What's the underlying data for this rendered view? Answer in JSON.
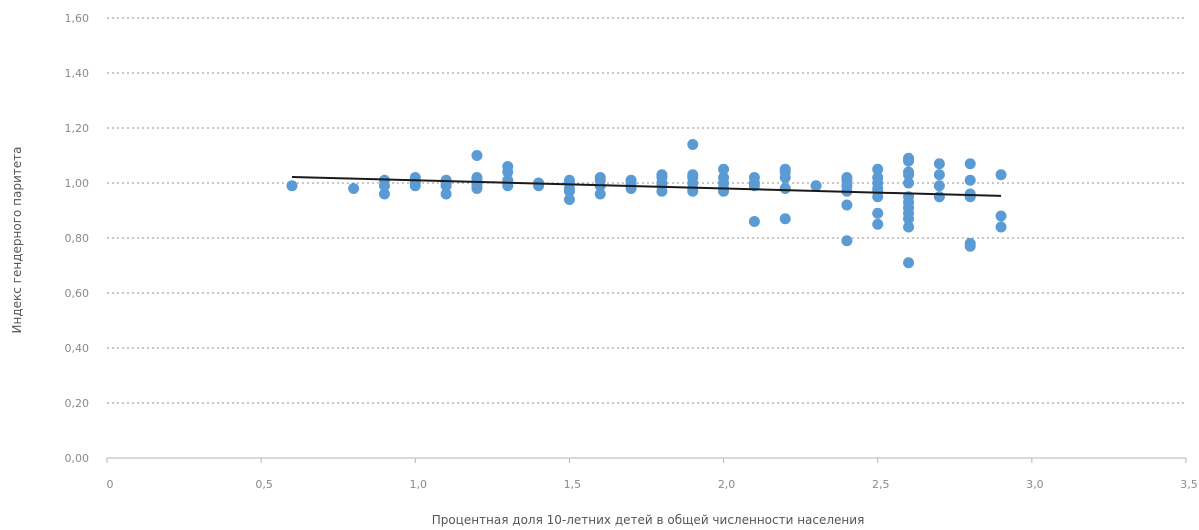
{
  "chart_data": {
    "type": "scatter",
    "xlabel": "Процентная доля 10-летних детей в общей численности населения",
    "ylabel": "Индекс гендерного паритета",
    "xlim": [
      0,
      3.5
    ],
    "ylim": [
      0,
      1.6
    ],
    "x_ticks": [
      0,
      0.5,
      1.0,
      1.5,
      2.0,
      2.5,
      3.0,
      3.5
    ],
    "x_tick_labels": [
      "0",
      "0,5",
      "1,0",
      "1,5",
      "2,0",
      "2,5",
      "3,0",
      "3,5"
    ],
    "y_ticks": [
      0,
      0.2,
      0.4,
      0.6,
      0.8,
      1.0,
      1.2,
      1.4,
      1.6
    ],
    "y_tick_labels": [
      "0,00",
      "0,20",
      "0,40",
      "0,60",
      "0,80",
      "1,00",
      "1,20",
      "1,40",
      "1,60"
    ],
    "grid": "horizontal-dashed",
    "point_color": "#5b9bd5",
    "trend_color": "#1a1a1a",
    "points": [
      [
        0.6,
        0.99
      ],
      [
        0.8,
        0.98
      ],
      [
        0.9,
        1.01
      ],
      [
        0.9,
        0.99
      ],
      [
        0.9,
        0.96
      ],
      [
        1.0,
        1.02
      ],
      [
        1.0,
        1.01
      ],
      [
        1.0,
        1.0
      ],
      [
        1.0,
        0.99
      ],
      [
        1.1,
        1.01
      ],
      [
        1.1,
        1.0
      ],
      [
        1.1,
        0.99
      ],
      [
        1.1,
        0.96
      ],
      [
        1.2,
        1.1
      ],
      [
        1.2,
        1.02
      ],
      [
        1.2,
        1.01
      ],
      [
        1.2,
        1.0
      ],
      [
        1.2,
        0.99
      ],
      [
        1.2,
        0.98
      ],
      [
        1.3,
        1.06
      ],
      [
        1.3,
        1.04
      ],
      [
        1.3,
        1.01
      ],
      [
        1.3,
        1.0
      ],
      [
        1.3,
        0.99
      ],
      [
        1.4,
        1.0
      ],
      [
        1.4,
        0.99
      ],
      [
        1.5,
        1.01
      ],
      [
        1.5,
        1.0
      ],
      [
        1.5,
        0.98
      ],
      [
        1.5,
        0.97
      ],
      [
        1.5,
        0.94
      ],
      [
        1.6,
        1.02
      ],
      [
        1.6,
        1.01
      ],
      [
        1.6,
        0.99
      ],
      [
        1.6,
        0.96
      ],
      [
        1.7,
        1.01
      ],
      [
        1.7,
        1.0
      ],
      [
        1.7,
        0.99
      ],
      [
        1.7,
        0.98
      ],
      [
        1.8,
        1.03
      ],
      [
        1.8,
        1.02
      ],
      [
        1.8,
        1.0
      ],
      [
        1.8,
        0.99
      ],
      [
        1.8,
        0.97
      ],
      [
        1.9,
        1.14
      ],
      [
        1.9,
        1.03
      ],
      [
        1.9,
        1.02
      ],
      [
        1.9,
        1.0
      ],
      [
        1.9,
        0.98
      ],
      [
        1.9,
        0.97
      ],
      [
        2.0,
        1.05
      ],
      [
        2.0,
        1.02
      ],
      [
        2.0,
        1.0
      ],
      [
        2.0,
        0.98
      ],
      [
        2.0,
        0.97
      ],
      [
        2.1,
        1.02
      ],
      [
        2.1,
        1.0
      ],
      [
        2.1,
        0.99
      ],
      [
        2.1,
        0.86
      ],
      [
        2.2,
        1.05
      ],
      [
        2.2,
        1.04
      ],
      [
        2.2,
        1.02
      ],
      [
        2.2,
        0.98
      ],
      [
        2.2,
        0.87
      ],
      [
        2.3,
        0.99
      ],
      [
        2.4,
        1.02
      ],
      [
        2.4,
        1.01
      ],
      [
        2.4,
        0.99
      ],
      [
        2.4,
        0.97
      ],
      [
        2.4,
        0.92
      ],
      [
        2.4,
        0.79
      ],
      [
        2.5,
        1.05
      ],
      [
        2.5,
        1.02
      ],
      [
        2.5,
        1.0
      ],
      [
        2.5,
        0.98
      ],
      [
        2.5,
        0.97
      ],
      [
        2.5,
        0.95
      ],
      [
        2.5,
        0.89
      ],
      [
        2.5,
        0.85
      ],
      [
        2.6,
        1.09
      ],
      [
        2.6,
        1.08
      ],
      [
        2.6,
        1.04
      ],
      [
        2.6,
        1.03
      ],
      [
        2.6,
        1.0
      ],
      [
        2.6,
        0.95
      ],
      [
        2.6,
        0.93
      ],
      [
        2.6,
        0.91
      ],
      [
        2.6,
        0.89
      ],
      [
        2.6,
        0.87
      ],
      [
        2.6,
        0.84
      ],
      [
        2.6,
        0.71
      ],
      [
        2.7,
        1.07
      ],
      [
        2.7,
        1.03
      ],
      [
        2.7,
        0.99
      ],
      [
        2.7,
        0.95
      ],
      [
        2.8,
        1.07
      ],
      [
        2.8,
        1.01
      ],
      [
        2.8,
        0.96
      ],
      [
        2.8,
        0.95
      ],
      [
        2.8,
        0.78
      ],
      [
        2.8,
        0.77
      ],
      [
        2.9,
        1.03
      ],
      [
        2.9,
        0.88
      ],
      [
        2.9,
        0.84
      ]
    ],
    "trendline": {
      "x": [
        0.6,
        2.9
      ],
      "y": [
        1.022,
        0.953
      ]
    }
  }
}
